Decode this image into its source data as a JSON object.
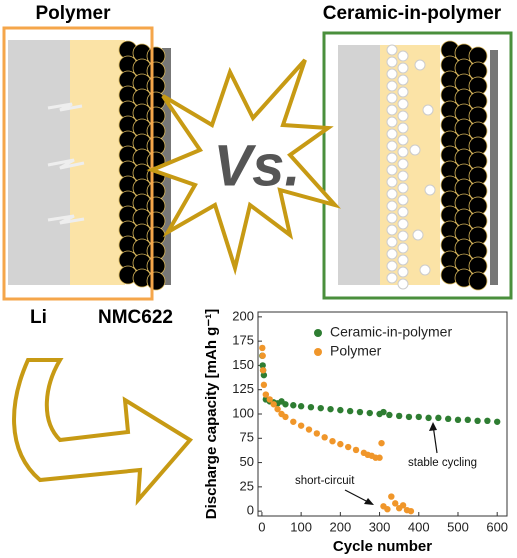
{
  "panels": {
    "left_title": "Polymer",
    "right_title": "Ceramic-in-polymer",
    "vs": "Vs.",
    "li_label": "Li",
    "nmc_label": "NMC622"
  },
  "chart_data": {
    "type": "scatter",
    "xlabel": "Cycle number",
    "ylabel": "Discharge capacity [mAh g⁻¹]",
    "xlim": [
      -10,
      625
    ],
    "ylim": [
      -5,
      205
    ],
    "xticks": [
      0,
      100,
      200,
      300,
      400,
      500,
      600
    ],
    "yticks": [
      0,
      25,
      50,
      75,
      100,
      125,
      150,
      175,
      200
    ],
    "legend": "upper right",
    "series": [
      {
        "name": "Ceramic-in-polymer",
        "color": "#2e7d32",
        "x": [
          1,
          2,
          3,
          5,
          10,
          20,
          30,
          40,
          50,
          60,
          80,
          100,
          125,
          150,
          175,
          200,
          225,
          250,
          275,
          300,
          310,
          325,
          350,
          375,
          400,
          425,
          450,
          475,
          500,
          525,
          550,
          575,
          600
        ],
        "values": [
          160,
          150,
          145,
          140,
          115,
          113,
          112,
          111,
          113,
          110,
          109,
          108,
          107,
          106,
          105,
          104,
          103,
          102,
          101,
          100,
          102,
          99,
          98,
          97,
          97,
          96,
          96,
          95,
          94,
          94,
          93,
          93,
          92
        ]
      },
      {
        "name": "Polymer",
        "color": "#f0962a",
        "x": [
          1,
          2,
          3,
          5,
          10,
          20,
          30,
          40,
          50,
          60,
          80,
          100,
          120,
          140,
          160,
          180,
          200,
          220,
          240,
          260,
          270,
          280,
          290,
          300,
          305,
          310,
          320,
          330,
          340,
          350,
          360,
          370,
          380
        ],
        "values": [
          168,
          160,
          145,
          130,
          120,
          115,
          110,
          105,
          100,
          97,
          92,
          88,
          84,
          80,
          76,
          72,
          69,
          66,
          63,
          60,
          58,
          57,
          55,
          55,
          70,
          5,
          2,
          15,
          8,
          3,
          6,
          1,
          0
        ]
      }
    ],
    "annotations": [
      {
        "text": "stable cycling"
      },
      {
        "text": "short-circuit"
      }
    ]
  }
}
